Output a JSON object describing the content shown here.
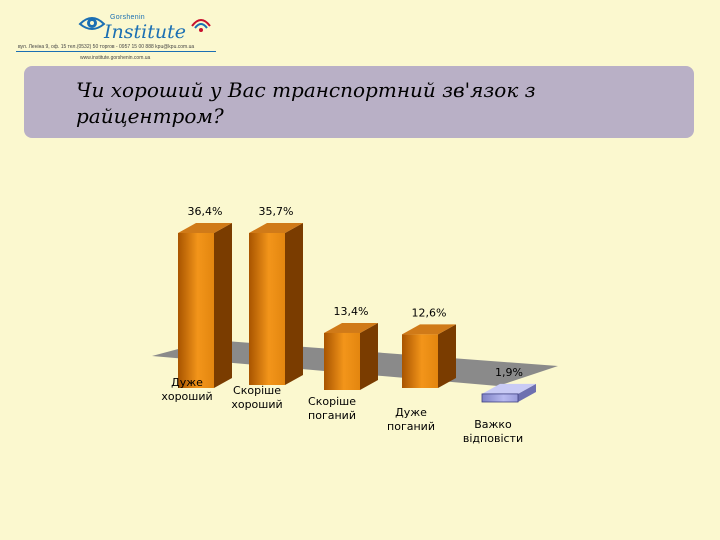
{
  "header": {
    "logo_top": "Gorshenin",
    "logo_name": "Institute",
    "address_line1": "вул. Леніна 9, оф. 15 тел.(0532) 50 торгов - 0957 15 00 888 kpu@kpu.com.ua",
    "address_line2": "www.institute.gorshenin.com.ua"
  },
  "title": "Чи хороший у Вас транспортний зв'язок з райцентром?",
  "colors": {
    "background": "#fbf8cf",
    "title_box": "#b9b0c6",
    "bar_front_light": "#f3951a",
    "bar_front_dark": "#a85400",
    "bar_top": "#d07a18",
    "bar_side": "#7a3c00",
    "last_bar": "#9a9cdb",
    "floor": "#8a8a8a"
  },
  "chart_data": {
    "type": "bar",
    "categories": [
      "Дуже хороший",
      "Скоріше хороший",
      "Скоріше поганий",
      "Дуже поганий",
      "Важко відповісти"
    ],
    "values": [
      36.4,
      35.7,
      13.4,
      12.6,
      1.9
    ],
    "value_labels": [
      "36,4%",
      "35,7%",
      "13,4%",
      "12,6%",
      "1,9%"
    ],
    "unit": "%",
    "ylim": [
      0,
      40
    ],
    "style": "3d-columns",
    "grid": false,
    "legend": "none"
  }
}
